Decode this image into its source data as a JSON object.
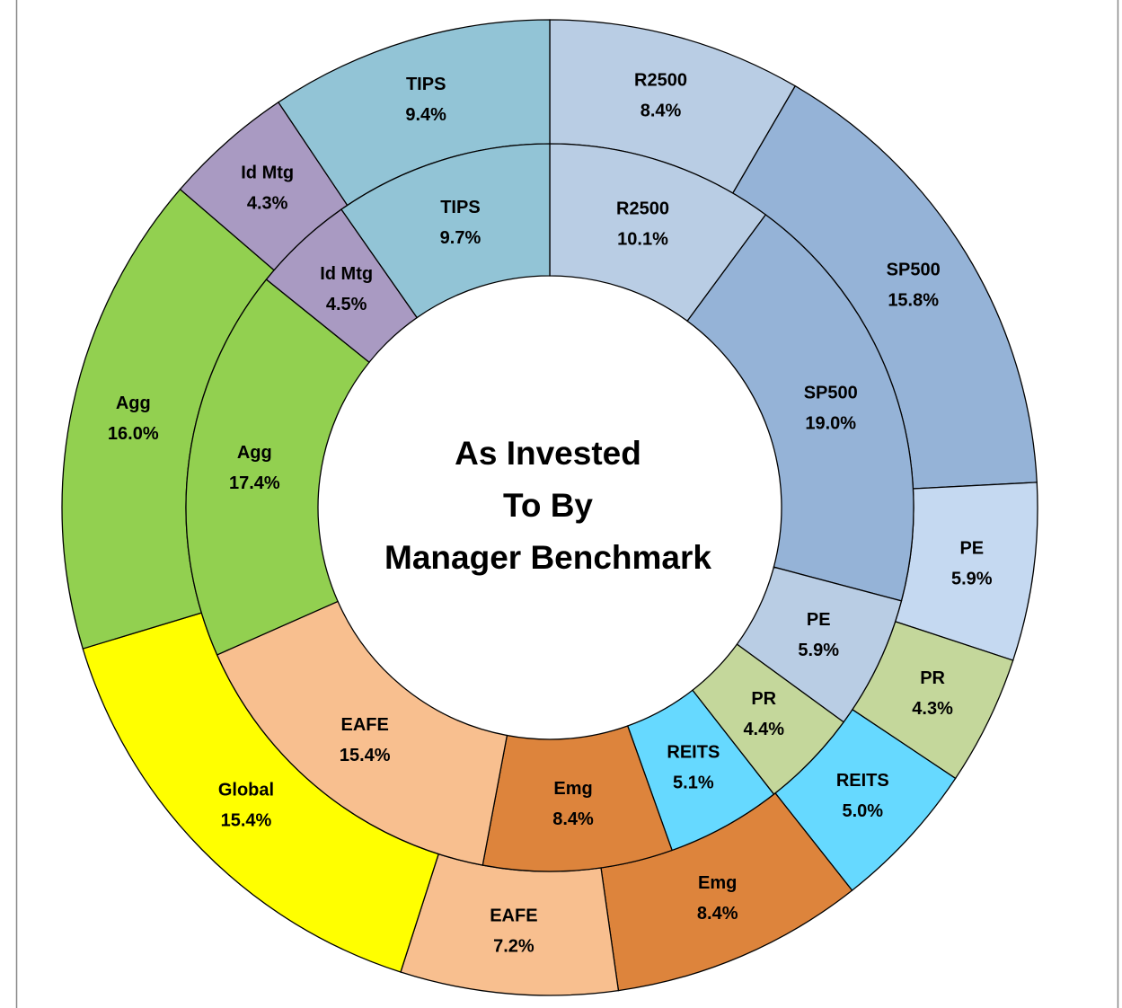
{
  "chart_data": {
    "type": "donut",
    "title": [
      "As Invested",
      "To By",
      "Manager Benchmark"
    ],
    "rings": [
      {
        "categories": [
          "R2500",
          "SP500",
          "PE",
          "PR",
          "REITS",
          "Emg",
          "EAFE",
          "Global",
          "Agg",
          "Id Mtg",
          "TIPS"
        ],
        "values": [
          8.4,
          15.8,
          5.9,
          4.3,
          5.0,
          8.4,
          7.2,
          15.4,
          16.0,
          4.3,
          9.4
        ],
        "value_labels": [
          "8.4%",
          "15.8%",
          "5.9%",
          "4.3%",
          "5.0%",
          "8.4%",
          "7.2%",
          "15.4%",
          "16.0%",
          "4.3%",
          "9.4%"
        ],
        "colors": [
          "#b9cde4",
          "#95b3d7",
          "#c5d9f1",
          "#c4d79b",
          "#66d9ff",
          "#dd843c",
          "#f8bf8f",
          "#ffff00",
          "#92d050",
          "#a99ac2",
          "#92c4d6"
        ]
      },
      {
        "categories": [
          "R2500",
          "SP500",
          "PE",
          "PR",
          "REITS",
          "Emg",
          "EAFE",
          "Agg",
          "Id Mtg",
          "TIPS"
        ],
        "values": [
          10.1,
          19.0,
          5.9,
          4.4,
          5.1,
          8.4,
          15.4,
          17.4,
          4.5,
          9.7
        ],
        "value_labels": [
          "10.1%",
          "19.0%",
          "5.9%",
          "4.4%",
          "5.1%",
          "8.4%",
          "15.4%",
          "17.4%",
          "4.5%",
          "9.7%"
        ],
        "colors": [
          "#b9cde4",
          "#95b3d7",
          "#b9cde4",
          "#c4d79b",
          "#66d9ff",
          "#dd843c",
          "#f8bf8f",
          "#92d050",
          "#a99ac2",
          "#92c4d6"
        ]
      }
    ]
  }
}
